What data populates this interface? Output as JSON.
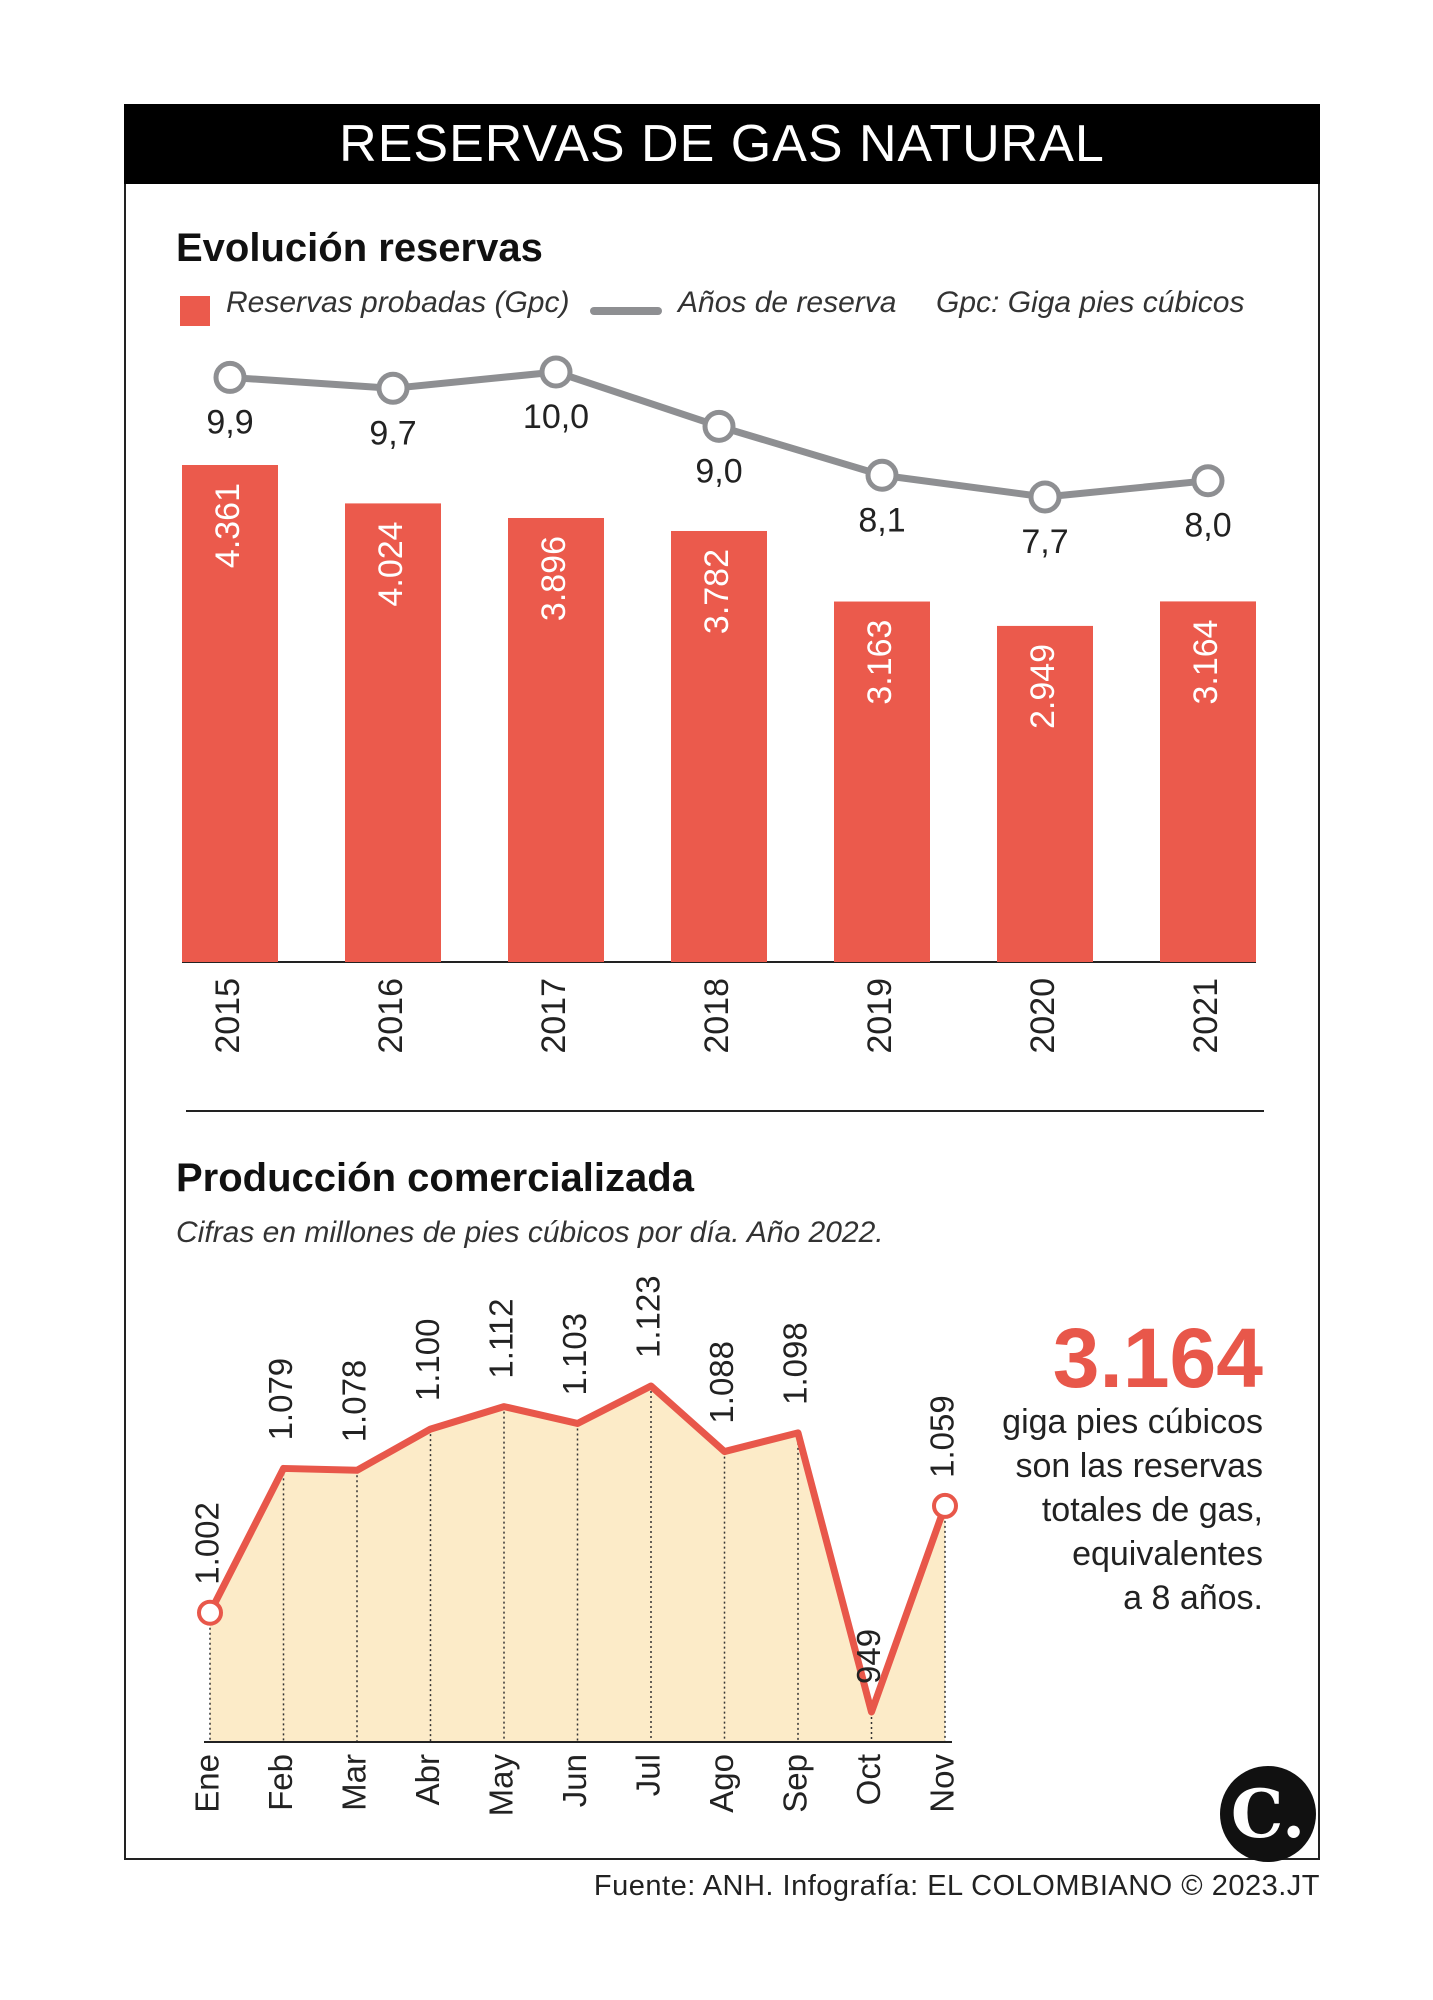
{
  "title": "RESERVAS DE GAS NATURAL",
  "section1": {
    "title": "Evolución reservas",
    "legend_bars": "Reservas probadas (Gpc)",
    "legend_line": "Años de reserva",
    "legend_note": "Gpc: Giga pies cúbicos"
  },
  "section2": {
    "title": "Producción comercializada",
    "subtitle": "Cifras en millones de pies cúbicos por día. Año 2022."
  },
  "highlight": {
    "number": "3.164",
    "lines": [
      "giga pies cúbicos",
      "son las reservas",
      "totales de gas,",
      "equivalentes",
      "a 8 años."
    ]
  },
  "source": "Fuente: ANH. Infografía: EL COLOMBIANO © 2023.JT",
  "logo_text": "C.",
  "colors": {
    "bar": "#EB5A4C",
    "line": "#8E8F92",
    "area_line": "#E8574A",
    "area_fill": "#FCEBC8"
  },
  "chart_data": [
    {
      "type": "bar",
      "title": "Evolución reservas",
      "categories": [
        "2015",
        "2016",
        "2017",
        "2018",
        "2019",
        "2020",
        "2021"
      ],
      "series": [
        {
          "name": "Reservas probadas (Gpc)",
          "type": "bar",
          "values": [
            4361,
            4024,
            3896,
            3782,
            3163,
            2949,
            3164
          ],
          "labels": [
            "4.361",
            "4.024",
            "3.896",
            "3.782",
            "3.163",
            "2.949",
            "3.164"
          ]
        },
        {
          "name": "Años de reserva",
          "type": "line",
          "values": [
            9.9,
            9.7,
            10.0,
            9.0,
            8.1,
            7.7,
            8.0
          ],
          "labels": [
            "9,9",
            "9,7",
            "10,0",
            "9,0",
            "8,1",
            "7,7",
            "8,0"
          ]
        }
      ],
      "ylim": [
        0,
        4500
      ],
      "y2lim": [
        0,
        10.5
      ]
    },
    {
      "type": "area",
      "title": "Producción comercializada",
      "categories": [
        "Ene",
        "Feb",
        "Mar",
        "Abr",
        "May",
        "Jun",
        "Jul",
        "Ago",
        "Sep",
        "Oct",
        "Nov"
      ],
      "values": [
        1002,
        1079,
        1078,
        1100,
        1112,
        1103,
        1123,
        1088,
        1098,
        949,
        1059
      ],
      "labels": [
        "1.002",
        "1.079",
        "1.078",
        "1.100",
        "1.112",
        "1.103",
        "1.123",
        "1.088",
        "1.098",
        "949",
        "1.059"
      ],
      "ylim": [
        940,
        1140
      ]
    }
  ]
}
